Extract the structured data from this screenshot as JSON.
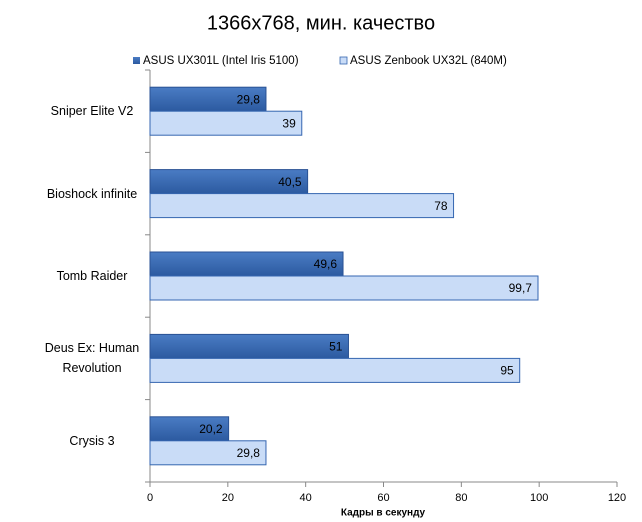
{
  "chart_data": {
    "type": "bar",
    "orientation": "horizontal",
    "title": "1366x768, мин. качество",
    "x_label": "Кадры  в секунду",
    "categories": [
      "Sniper Elite V2",
      "Bioshock infinite",
      "Tomb Raider",
      "Deus Ex: Human Revolution",
      "Crysis 3"
    ],
    "series": [
      {
        "name": "ASUS UX301L (Intel Iris 5100)",
        "color": "#3566b0",
        "values": [
          29.8,
          40.5,
          49.6,
          51,
          20.2
        ],
        "value_labels": [
          "29,8",
          "40,5",
          "49,6",
          "51",
          "20,2"
        ]
      },
      {
        "name": "ASUS Zenbook UX32L (840M)",
        "color": "#c9dcf7",
        "values": [
          39,
          78,
          99.7,
          95,
          29.8
        ],
        "value_labels": [
          "39",
          "78",
          "99,7",
          "95",
          "29,8"
        ]
      }
    ],
    "xlim": [
      0,
      120
    ],
    "xticks": [
      0,
      20,
      40,
      60,
      80,
      100,
      120
    ],
    "grid": false,
    "legend": "top"
  }
}
